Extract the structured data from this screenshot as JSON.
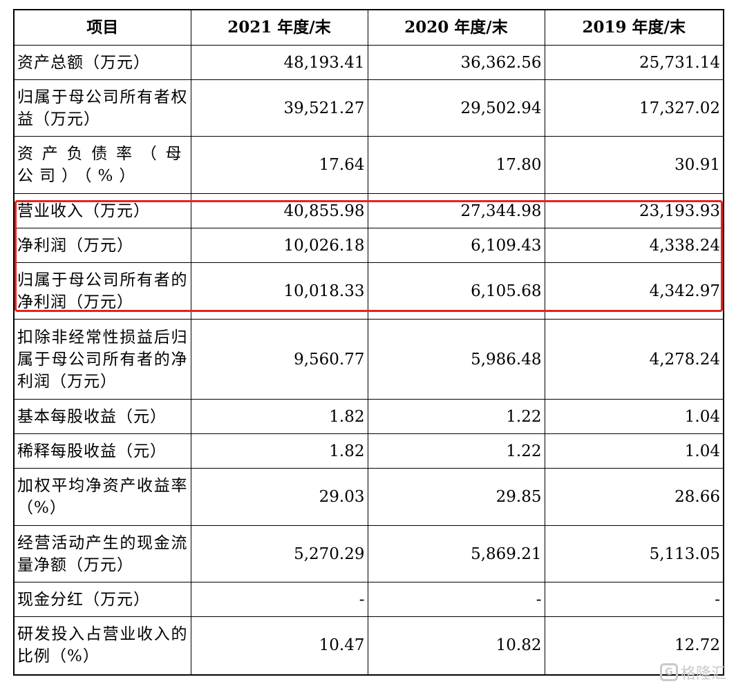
{
  "table": {
    "headers": [
      "项目",
      "2021 年度/末",
      "2020 年度/末",
      "2019 年度/末"
    ],
    "rows": [
      {
        "label": "资产总额（万元）",
        "values": [
          "48,193.41",
          "36,362.56",
          "25,731.14"
        ]
      },
      {
        "label": "归属于母公司所有者权益（万元）",
        "values": [
          "39,521.27",
          "29,502.94",
          "17,327.02"
        ]
      },
      {
        "label": "资产负债率（母公司）（%）",
        "values": [
          "17.64",
          "17.80",
          "30.91"
        ]
      },
      {
        "label": "营业收入（万元）",
        "values": [
          "40,855.98",
          "27,344.98",
          "23,193.93"
        ]
      },
      {
        "label": "净利润（万元）",
        "values": [
          "10,026.18",
          "6,109.43",
          "4,338.24"
        ]
      },
      {
        "label": "归属于母公司所有者的净利润（万元）",
        "values": [
          "10,018.33",
          "6,105.68",
          "4,342.97"
        ]
      },
      {
        "label": "扣除非经常性损益后归属于母公司所有者的净利润（万元）",
        "values": [
          "9,560.77",
          "5,986.48",
          "4,278.24"
        ]
      },
      {
        "label": "基本每股收益（元）",
        "values": [
          "1.82",
          "1.22",
          "1.04"
        ]
      },
      {
        "label": "稀释每股收益（元）",
        "values": [
          "1.82",
          "1.22",
          "1.04"
        ]
      },
      {
        "label": "加权平均净资产收益率（%）",
        "values": [
          "29.03",
          "29.85",
          "28.66"
        ]
      },
      {
        "label": "经营活动产生的现金流量净额（万元）",
        "values": [
          "5,270.29",
          "5,869.21",
          "5,113.05"
        ]
      },
      {
        "label": "现金分红（万元）",
        "values": [
          "-",
          "-",
          "-"
        ]
      },
      {
        "label": "研发投入占营业收入的比例（%）",
        "values": [
          "10.47",
          "10.82",
          "12.72"
        ]
      }
    ]
  },
  "highlight_color": "#e8201e",
  "watermark": {
    "logo_text": "G",
    "text": "格隆汇",
    "icon": "gelonghui-logo-icon"
  }
}
